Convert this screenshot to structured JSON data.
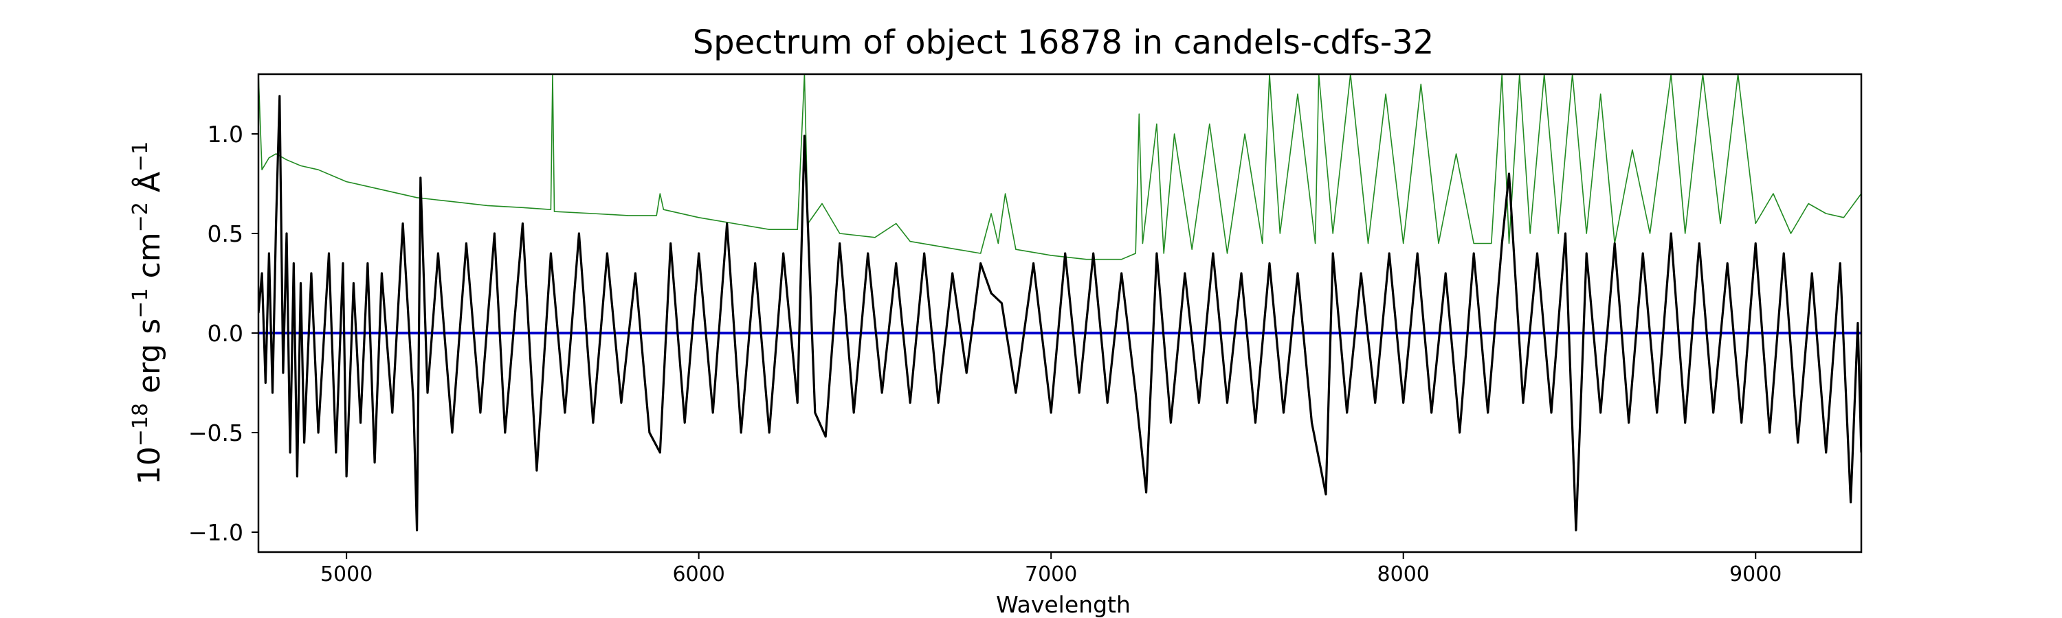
{
  "chart_data": {
    "type": "line",
    "title": "Spectrum of object 16878 in candels-cdfs-32",
    "xlabel": "Wavelength",
    "ylabel": {
      "base": "10",
      "base_exp": "−18",
      "unit_text": " erg s",
      "s_exp": "−1",
      "cm_text": " cm",
      "cm_exp": "−2",
      "ang_text": " Å",
      "ang_exp": "−1"
    },
    "xlim": [
      4750,
      9300
    ],
    "ylim": [
      -1.1,
      1.3
    ],
    "xticks": [
      5000,
      6000,
      7000,
      8000,
      9000
    ],
    "xtick_labels": [
      "5000",
      "6000",
      "7000",
      "8000",
      "9000"
    ],
    "yticks": [
      -1.0,
      -0.5,
      0.0,
      0.5,
      1.0
    ],
    "ytick_labels": [
      "−1.0",
      "−0.5",
      "0.0",
      "0.5",
      "1.0"
    ],
    "grid": false,
    "series": [
      {
        "role": "flux",
        "color": "#000000",
        "x_start": 4750,
        "x_step": 5,
        "points_per_step": 1,
        "samples": [
          [
            4750,
            0.1
          ],
          [
            4760,
            0.3
          ],
          [
            4770,
            -0.25
          ],
          [
            4780,
            0.4
          ],
          [
            4790,
            -0.3
          ],
          [
            4800,
            0.55
          ],
          [
            4810,
            1.19
          ],
          [
            4820,
            -0.2
          ],
          [
            4830,
            0.5
          ],
          [
            4840,
            -0.6
          ],
          [
            4850,
            0.35
          ],
          [
            4860,
            -0.72
          ],
          [
            4870,
            0.25
          ],
          [
            4880,
            -0.55
          ],
          [
            4900,
            0.3
          ],
          [
            4920,
            -0.5
          ],
          [
            4950,
            0.4
          ],
          [
            4970,
            -0.6
          ],
          [
            4990,
            0.35
          ],
          [
            5000,
            -0.72
          ],
          [
            5020,
            0.25
          ],
          [
            5040,
            -0.45
          ],
          [
            5060,
            0.35
          ],
          [
            5080,
            -0.65
          ],
          [
            5100,
            0.3
          ],
          [
            5130,
            -0.4
          ],
          [
            5160,
            0.55
          ],
          [
            5190,
            -0.35
          ],
          [
            5200,
            -0.99
          ],
          [
            5210,
            0.78
          ],
          [
            5230,
            -0.3
          ],
          [
            5260,
            0.4
          ],
          [
            5300,
            -0.5
          ],
          [
            5340,
            0.45
          ],
          [
            5380,
            -0.4
          ],
          [
            5420,
            0.5
          ],
          [
            5450,
            -0.5
          ],
          [
            5500,
            0.55
          ],
          [
            5540,
            -0.69
          ],
          [
            5580,
            0.4
          ],
          [
            5620,
            -0.4
          ],
          [
            5660,
            0.5
          ],
          [
            5700,
            -0.45
          ],
          [
            5740,
            0.4
          ],
          [
            5780,
            -0.35
          ],
          [
            5820,
            0.3
          ],
          [
            5860,
            -0.5
          ],
          [
            5890,
            -0.6
          ],
          [
            5920,
            0.45
          ],
          [
            5960,
            -0.45
          ],
          [
            6000,
            0.4
          ],
          [
            6040,
            -0.4
          ],
          [
            6080,
            0.55
          ],
          [
            6120,
            -0.5
          ],
          [
            6160,
            0.35
          ],
          [
            6200,
            -0.5
          ],
          [
            6240,
            0.4
          ],
          [
            6280,
            -0.35
          ],
          [
            6300,
            0.99
          ],
          [
            6330,
            -0.4
          ],
          [
            6360,
            -0.52
          ],
          [
            6400,
            0.45
          ],
          [
            6440,
            -0.4
          ],
          [
            6480,
            0.4
          ],
          [
            6520,
            -0.3
          ],
          [
            6560,
            0.35
          ],
          [
            6600,
            -0.35
          ],
          [
            6640,
            0.4
          ],
          [
            6680,
            -0.35
          ],
          [
            6720,
            0.3
          ],
          [
            6760,
            -0.2
          ],
          [
            6800,
            0.35
          ],
          [
            6830,
            0.2
          ],
          [
            6860,
            0.15
          ],
          [
            6900,
            -0.3
          ],
          [
            6950,
            0.35
          ],
          [
            7000,
            -0.4
          ],
          [
            7040,
            0.4
          ],
          [
            7080,
            -0.3
          ],
          [
            7120,
            0.4
          ],
          [
            7160,
            -0.35
          ],
          [
            7200,
            0.3
          ],
          [
            7240,
            -0.3
          ],
          [
            7270,
            -0.8
          ],
          [
            7300,
            0.4
          ],
          [
            7340,
            -0.45
          ],
          [
            7380,
            0.3
          ],
          [
            7420,
            -0.35
          ],
          [
            7460,
            0.4
          ],
          [
            7500,
            -0.35
          ],
          [
            7540,
            0.3
          ],
          [
            7580,
            -0.45
          ],
          [
            7620,
            0.35
          ],
          [
            7660,
            -0.4
          ],
          [
            7700,
            0.3
          ],
          [
            7740,
            -0.45
          ],
          [
            7780,
            -0.81
          ],
          [
            7800,
            0.4
          ],
          [
            7840,
            -0.4
          ],
          [
            7880,
            0.3
          ],
          [
            7920,
            -0.35
          ],
          [
            7960,
            0.4
          ],
          [
            8000,
            -0.35
          ],
          [
            8040,
            0.4
          ],
          [
            8080,
            -0.4
          ],
          [
            8120,
            0.3
          ],
          [
            8160,
            -0.5
          ],
          [
            8200,
            0.4
          ],
          [
            8240,
            -0.4
          ],
          [
            8280,
            0.45
          ],
          [
            8300,
            0.8
          ],
          [
            8340,
            -0.35
          ],
          [
            8380,
            0.4
          ],
          [
            8420,
            -0.4
          ],
          [
            8460,
            0.5
          ],
          [
            8490,
            -0.99
          ],
          [
            8520,
            0.4
          ],
          [
            8560,
            -0.4
          ],
          [
            8600,
            0.45
          ],
          [
            8640,
            -0.45
          ],
          [
            8680,
            0.4
          ],
          [
            8720,
            -0.4
          ],
          [
            8760,
            0.5
          ],
          [
            8800,
            -0.45
          ],
          [
            8840,
            0.45
          ],
          [
            8880,
            -0.4
          ],
          [
            8920,
            0.35
          ],
          [
            8960,
            -0.45
          ],
          [
            9000,
            0.45
          ],
          [
            9040,
            -0.5
          ],
          [
            9080,
            0.4
          ],
          [
            9120,
            -0.55
          ],
          [
            9160,
            0.3
          ],
          [
            9200,
            -0.6
          ],
          [
            9240,
            0.35
          ],
          [
            9270,
            -0.85
          ],
          [
            9290,
            0.05
          ],
          [
            9300,
            -0.6
          ]
        ]
      },
      {
        "role": "error",
        "color": "#228b22",
        "samples": [
          [
            4750,
            1.3
          ],
          [
            4760,
            0.82
          ],
          [
            4780,
            0.88
          ],
          [
            4800,
            0.9
          ],
          [
            4830,
            0.87
          ],
          [
            4870,
            0.84
          ],
          [
            4920,
            0.82
          ],
          [
            5000,
            0.76
          ],
          [
            5100,
            0.72
          ],
          [
            5200,
            0.68
          ],
          [
            5300,
            0.66
          ],
          [
            5400,
            0.64
          ],
          [
            5500,
            0.63
          ],
          [
            5580,
            0.62
          ],
          [
            5585,
            1.3
          ],
          [
            5590,
            0.61
          ],
          [
            5700,
            0.6
          ],
          [
            5800,
            0.59
          ],
          [
            5880,
            0.59
          ],
          [
            5890,
            0.7
          ],
          [
            5900,
            0.62
          ],
          [
            6000,
            0.58
          ],
          [
            6100,
            0.55
          ],
          [
            6200,
            0.52
          ],
          [
            6280,
            0.52
          ],
          [
            6300,
            1.3
          ],
          [
            6310,
            0.55
          ],
          [
            6350,
            0.65
          ],
          [
            6400,
            0.5
          ],
          [
            6500,
            0.48
          ],
          [
            6560,
            0.55
          ],
          [
            6600,
            0.46
          ],
          [
            6700,
            0.43
          ],
          [
            6800,
            0.4
          ],
          [
            6830,
            0.6
          ],
          [
            6850,
            0.45
          ],
          [
            6870,
            0.7
          ],
          [
            6900,
            0.42
          ],
          [
            7000,
            0.39
          ],
          [
            7100,
            0.37
          ],
          [
            7200,
            0.37
          ],
          [
            7240,
            0.4
          ],
          [
            7250,
            1.1
          ],
          [
            7260,
            0.45
          ],
          [
            7300,
            1.05
          ],
          [
            7320,
            0.4
          ],
          [
            7350,
            1.0
          ],
          [
            7400,
            0.42
          ],
          [
            7450,
            1.05
          ],
          [
            7500,
            0.4
          ],
          [
            7550,
            1.0
          ],
          [
            7600,
            0.45
          ],
          [
            7620,
            1.3
          ],
          [
            7650,
            0.5
          ],
          [
            7700,
            1.2
          ],
          [
            7750,
            0.45
          ],
          [
            7760,
            1.3
          ],
          [
            7800,
            0.5
          ],
          [
            7850,
            1.3
          ],
          [
            7900,
            0.45
          ],
          [
            7950,
            1.2
          ],
          [
            8000,
            0.45
          ],
          [
            8050,
            1.25
          ],
          [
            8100,
            0.45
          ],
          [
            8150,
            0.9
          ],
          [
            8200,
            0.45
          ],
          [
            8250,
            0.45
          ],
          [
            8280,
            1.3
          ],
          [
            8300,
            0.45
          ],
          [
            8330,
            1.3
          ],
          [
            8360,
            0.5
          ],
          [
            8400,
            1.3
          ],
          [
            8440,
            0.5
          ],
          [
            8480,
            1.3
          ],
          [
            8520,
            0.5
          ],
          [
            8560,
            1.2
          ],
          [
            8600,
            0.45
          ],
          [
            8650,
            0.92
          ],
          [
            8700,
            0.5
          ],
          [
            8760,
            1.3
          ],
          [
            8800,
            0.5
          ],
          [
            8850,
            1.3
          ],
          [
            8900,
            0.55
          ],
          [
            8950,
            1.3
          ],
          [
            9000,
            0.55
          ],
          [
            9050,
            0.7
          ],
          [
            9100,
            0.5
          ],
          [
            9150,
            0.65
          ],
          [
            9200,
            0.6
          ],
          [
            9250,
            0.58
          ],
          [
            9300,
            0.7
          ]
        ]
      },
      {
        "role": "continuum",
        "color": "#0000cc",
        "samples": [
          [
            4750,
            0.0
          ],
          [
            9300,
            0.0
          ]
        ]
      }
    ]
  }
}
